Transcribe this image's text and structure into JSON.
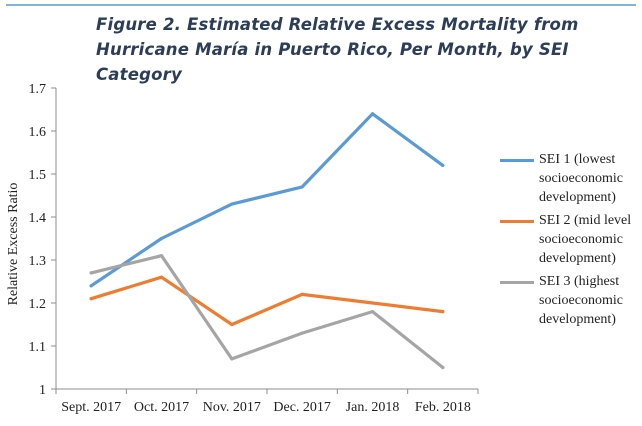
{
  "figure": {
    "title": "Figure 2. Estimated Relative Excess Mortality from Hurricane María in Puerto Rico, Per Month, by SEI Category"
  },
  "chart_data": {
    "type": "line",
    "title": "Figure 2. Estimated Relative Excess Mortality from Hurricane María in Puerto Rico, Per Month, by SEI Category",
    "xlabel": "",
    "ylabel": "Relative Excess Ratio",
    "categories": [
      "Sept. 2017",
      "Oct. 2017",
      "Nov. 2017",
      "Dec. 2017",
      "Jan. 2018",
      "Feb. 2018"
    ],
    "ylim": [
      1,
      1.7
    ],
    "yticks": [
      "1",
      "1.1",
      "1.2",
      "1.3",
      "1.4",
      "1.5",
      "1.6",
      "1.7"
    ],
    "grid": false,
    "legend_position": "right",
    "series": [
      {
        "name": "SEI 1 (lowest socioeconomic development)",
        "color": "#5b9bd5",
        "values": [
          1.24,
          1.35,
          1.43,
          1.47,
          1.64,
          1.52
        ]
      },
      {
        "name": "SEI 2 (mid level socioeconomic development)",
        "color": "#ed7d31",
        "values": [
          1.21,
          1.26,
          1.15,
          1.22,
          1.2,
          1.18
        ]
      },
      {
        "name": "SEI 3 (highest socioeconomic development)",
        "color": "#a5a5a5",
        "values": [
          1.27,
          1.31,
          1.07,
          1.13,
          1.18,
          1.05
        ]
      }
    ]
  }
}
